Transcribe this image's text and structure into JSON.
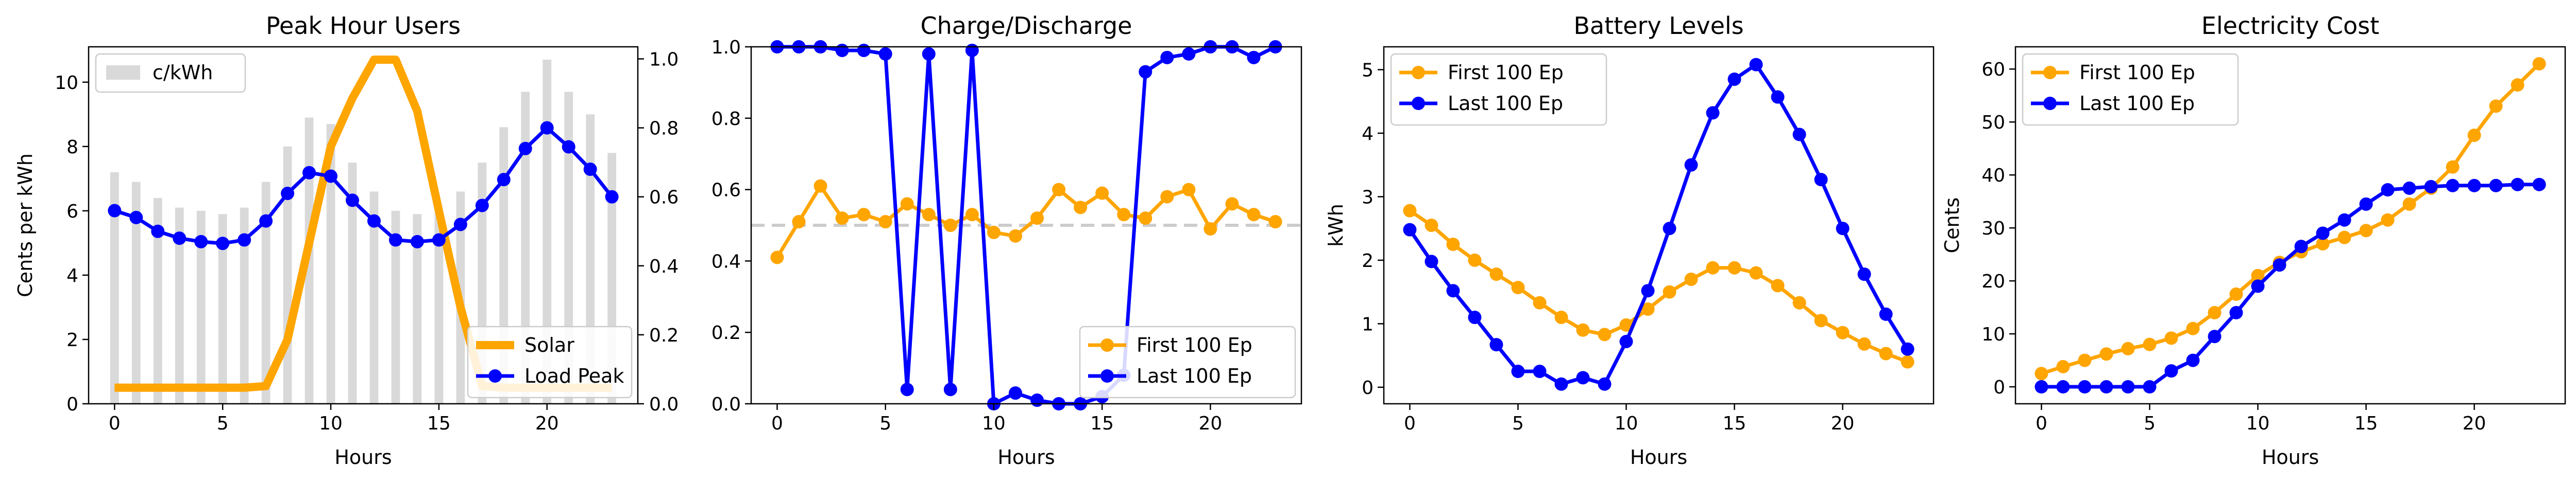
{
  "chart_data": [
    {
      "type": "bar+line",
      "title": "Peak Hour Users",
      "xlabel": "Hours",
      "ylabel": "Cents per kWh",
      "xlim": [
        -1.2,
        24.2
      ],
      "ylim": [
        0,
        11.1
      ],
      "xticks": [
        0,
        5,
        10,
        15,
        20
      ],
      "yticks": [
        0,
        2,
        4,
        6,
        8,
        10
      ],
      "y2lim": [
        0,
        1.035
      ],
      "y2ticks": [
        "0.0",
        "0.2",
        "0.4",
        "0.6",
        "0.8",
        "1.0"
      ],
      "bars": {
        "name": "c/kWh",
        "color": "#d9d9d9",
        "x": [
          0,
          1,
          2,
          3,
          4,
          5,
          6,
          7,
          8,
          9,
          10,
          11,
          12,
          13,
          14,
          15,
          16,
          17,
          18,
          19,
          20,
          21,
          22,
          23
        ],
        "values": [
          7.2,
          6.9,
          6.4,
          6.1,
          6.0,
          5.9,
          6.1,
          6.9,
          8.0,
          8.9,
          8.7,
          7.5,
          6.6,
          6.0,
          5.9,
          6.0,
          6.6,
          7.5,
          8.6,
          9.7,
          10.7,
          9.7,
          9.0,
          7.8
        ]
      },
      "series": [
        {
          "name": "Solar",
          "axis": "y",
          "color": "#ffa500",
          "style": "thick-line",
          "x": [
            0,
            1,
            2,
            3,
            4,
            5,
            6,
            7,
            8,
            9,
            10,
            11,
            12,
            13,
            14,
            15,
            16,
            17,
            18,
            19,
            20,
            21,
            22,
            23
          ],
          "values": [
            0.5,
            0.5,
            0.5,
            0.5,
            0.5,
            0.5,
            0.5,
            0.55,
            2.0,
            5.0,
            8.0,
            9.5,
            10.7,
            10.7,
            9.1,
            6.0,
            3.0,
            0.55,
            0.5,
            0.5,
            0.5,
            0.5,
            0.5,
            0.5
          ]
        },
        {
          "name": "Load Peak",
          "axis": "y2",
          "color": "#0000ff",
          "style": "line-marker",
          "x": [
            0,
            1,
            2,
            3,
            4,
            5,
            6,
            7,
            8,
            9,
            10,
            11,
            12,
            13,
            14,
            15,
            16,
            17,
            18,
            19,
            20,
            21,
            22,
            23
          ],
          "values": [
            0.56,
            0.54,
            0.5,
            0.48,
            0.47,
            0.465,
            0.475,
            0.53,
            0.61,
            0.67,
            0.66,
            0.59,
            0.53,
            0.475,
            0.47,
            0.475,
            0.52,
            0.575,
            0.65,
            0.74,
            0.8,
            0.745,
            0.68,
            0.6
          ]
        }
      ],
      "legend": [
        "top-left: c/kWh",
        "bottom-right: Solar, Load Peak"
      ]
    },
    {
      "type": "line",
      "title": "Charge/Discharge",
      "xlabel": "Hours",
      "ylabel": "",
      "xlim": [
        -1.2,
        24.2
      ],
      "ylim": [
        0,
        1.0
      ],
      "xticks": [
        0,
        5,
        10,
        15,
        20
      ],
      "yticks": [
        "0.0",
        "0.2",
        "0.4",
        "0.6",
        "0.8",
        "1.0"
      ],
      "reference_line": {
        "y": 0.5,
        "color": "#cccccc",
        "style": "dashed"
      },
      "series": [
        {
          "name": "First 100 Ep",
          "color": "#ffa500",
          "x": [
            0,
            1,
            2,
            3,
            4,
            5,
            6,
            7,
            8,
            9,
            10,
            11,
            12,
            13,
            14,
            15,
            16,
            17,
            18,
            19,
            20,
            21,
            22,
            23
          ],
          "values": [
            0.41,
            0.51,
            0.61,
            0.52,
            0.53,
            0.51,
            0.56,
            0.53,
            0.5,
            0.53,
            0.48,
            0.47,
            0.52,
            0.6,
            0.55,
            0.59,
            0.53,
            0.52,
            0.58,
            0.6,
            0.49,
            0.56,
            0.53,
            0.51
          ]
        },
        {
          "name": "Last 100 Ep",
          "color": "#0000ff",
          "x": [
            0,
            1,
            2,
            3,
            4,
            5,
            6,
            7,
            8,
            9,
            10,
            11,
            12,
            13,
            14,
            15,
            16,
            17,
            18,
            19,
            20,
            21,
            22,
            23
          ],
          "values": [
            1.0,
            1.0,
            1.0,
            0.99,
            0.99,
            0.98,
            0.04,
            0.98,
            0.04,
            0.99,
            0.0,
            0.03,
            0.01,
            0.0,
            0.0,
            0.02,
            0.08,
            0.93,
            0.97,
            0.98,
            1.0,
            1.0,
            0.97,
            1.0
          ]
        }
      ],
      "legend": "bottom-right"
    },
    {
      "type": "line",
      "title": "Battery Levels",
      "xlabel": "Hours",
      "ylabel": "kWh",
      "xlim": [
        -1.2,
        24.2
      ],
      "ylim": [
        -0.26,
        5.36
      ],
      "xticks": [
        0,
        5,
        10,
        15,
        20
      ],
      "yticks": [
        0,
        1,
        2,
        3,
        4,
        5
      ],
      "series": [
        {
          "name": "First 100 Ep",
          "color": "#ffa500",
          "x": [
            0,
            1,
            2,
            3,
            4,
            5,
            6,
            7,
            8,
            9,
            10,
            11,
            12,
            13,
            14,
            15,
            16,
            17,
            18,
            19,
            20,
            21,
            22,
            23
          ],
          "values": [
            2.78,
            2.55,
            2.25,
            2.0,
            1.78,
            1.57,
            1.33,
            1.1,
            0.9,
            0.83,
            0.98,
            1.23,
            1.5,
            1.7,
            1.88,
            1.88,
            1.8,
            1.6,
            1.33,
            1.05,
            0.86,
            0.68,
            0.53,
            0.4
          ]
        },
        {
          "name": "Last 100 Ep",
          "color": "#0000ff",
          "x": [
            0,
            1,
            2,
            3,
            4,
            5,
            6,
            7,
            8,
            9,
            10,
            11,
            12,
            13,
            14,
            15,
            16,
            17,
            18,
            19,
            20,
            21,
            22,
            23
          ],
          "values": [
            2.48,
            1.98,
            1.52,
            1.1,
            0.67,
            0.25,
            0.25,
            0.05,
            0.15,
            0.05,
            0.72,
            1.52,
            2.5,
            3.5,
            4.32,
            4.85,
            5.08,
            4.57,
            3.98,
            3.27,
            2.5,
            1.78,
            1.15,
            0.6
          ]
        }
      ],
      "legend": "top-left"
    },
    {
      "type": "line",
      "title": "Electricity Cost",
      "xlabel": "Hours",
      "ylabel": "Cents",
      "xlim": [
        -1.2,
        24.2
      ],
      "ylim": [
        -3.2,
        64.2
      ],
      "xticks": [
        0,
        5,
        10,
        15,
        20
      ],
      "yticks": [
        0,
        10,
        20,
        30,
        40,
        50,
        60
      ],
      "series": [
        {
          "name": "First 100 Ep",
          "color": "#ffa500",
          "x": [
            0,
            1,
            2,
            3,
            4,
            5,
            6,
            7,
            8,
            9,
            10,
            11,
            12,
            13,
            14,
            15,
            16,
            17,
            18,
            19,
            20,
            21,
            22,
            23
          ],
          "values": [
            2.5,
            3.8,
            5.0,
            6.2,
            7.2,
            8.0,
            9.2,
            11.0,
            14.0,
            17.5,
            21.0,
            23.5,
            25.5,
            27.0,
            28.2,
            29.5,
            31.5,
            34.5,
            37.5,
            41.5,
            47.5,
            53.0,
            57.0,
            61.0
          ]
        },
        {
          "name": "Last 100 Ep",
          "color": "#0000ff",
          "x": [
            0,
            1,
            2,
            3,
            4,
            5,
            6,
            7,
            8,
            9,
            10,
            11,
            12,
            13,
            14,
            15,
            16,
            17,
            18,
            19,
            20,
            21,
            22,
            23
          ],
          "values": [
            0.0,
            0.0,
            0.0,
            0.0,
            0.0,
            0.0,
            3.0,
            5.0,
            9.5,
            14.0,
            19.0,
            23.0,
            26.5,
            29.0,
            31.5,
            34.5,
            37.2,
            37.5,
            37.8,
            38.0,
            38.0,
            38.0,
            38.2,
            38.2
          ]
        }
      ],
      "legend": "top-left"
    }
  ]
}
